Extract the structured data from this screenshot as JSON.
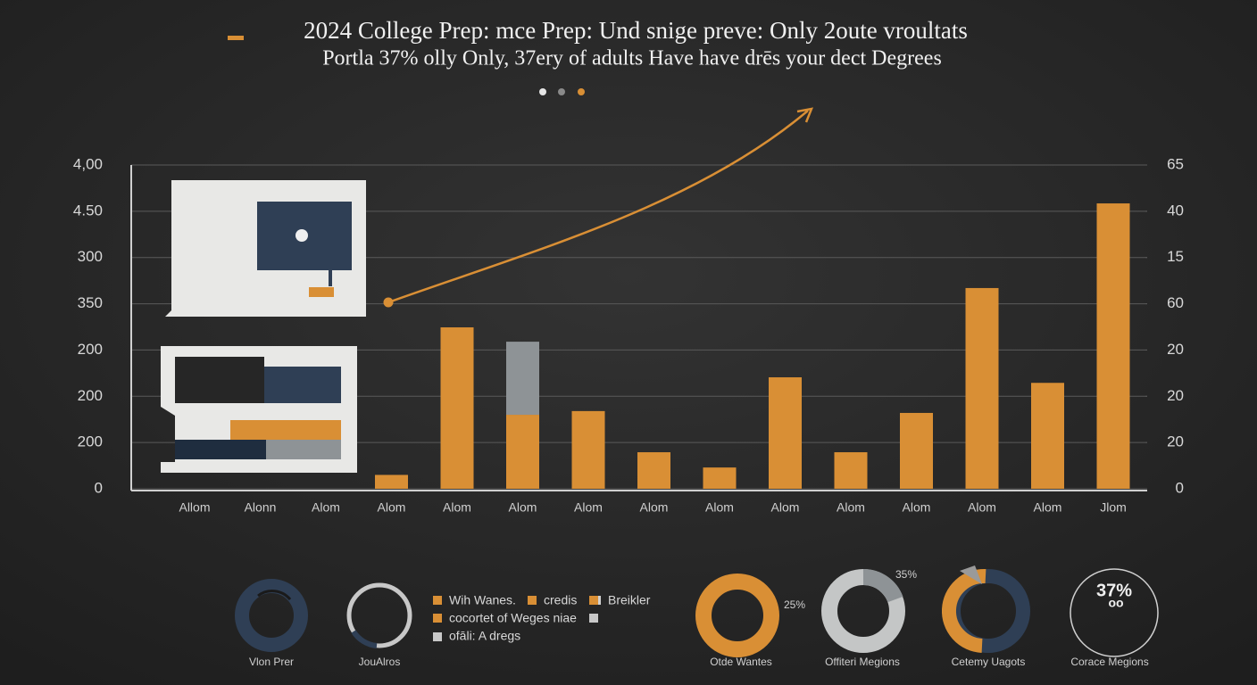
{
  "chart_data": {
    "type": "bar",
    "title": "2024 College Prep: mce Prep: Und snige preve: Only 2oute vroultats",
    "subtitle": "Portla 37% olly Only, 37ery of adults Have  have drēs your dect Degrees",
    "categories": [
      "Allom",
      "Alonn",
      "Alom",
      "Alom",
      "Alom",
      "Alom",
      "Alom",
      "Alom",
      "Alom",
      "Alom",
      "Alom",
      "Alom",
      "Alom",
      "Alom",
      "Jlom"
    ],
    "stacked": true,
    "series": [
      {
        "color": "#d98f35",
        "values": [
          null,
          null,
          null,
          0.3,
          3.49,
          1.6,
          1.68,
          0.79,
          0.46,
          2.41,
          0.79,
          1.64,
          4.34,
          2.29,
          6.17
        ]
      },
      {
        "color": "#8e9396",
        "values": [
          null,
          null,
          null,
          null,
          null,
          1.58,
          null,
          null,
          null,
          null,
          null,
          null,
          null,
          null,
          null
        ]
      }
    ],
    "ylim": [
      0,
      7
    ],
    "yticks": [
      0,
      {
        "value": 1,
        "label": "200"
      },
      {
        "value": 2,
        "label": "200"
      },
      {
        "value": 3,
        "label": "200"
      },
      {
        "value": 4,
        "label": "350"
      },
      {
        "value": 5,
        "label": "300"
      },
      {
        "value": 6,
        "label": "4.50"
      },
      {
        "value": 7,
        "label": "4,00"
      }
    ],
    "y2lim": [
      0,
      7
    ],
    "y2ticks": [
      0,
      {
        "value": 1,
        "label": "20"
      },
      {
        "value": 2,
        "label": "20"
      },
      {
        "value": 3,
        "label": "20"
      },
      {
        "value": 4,
        "label": "60"
      },
      {
        "value": 5,
        "label": "15"
      },
      {
        "value": 6,
        "label": "40"
      },
      {
        "value": 7,
        "label": "65"
      }
    ],
    "grid": true
  },
  "legend": [
    "Wih Wanes.",
    "credis",
    "Breikler",
    "cocortet of Weges niae",
    "ofāli: A dregs"
  ],
  "donuts": [
    {
      "label": "Vlon Prer"
    },
    {
      "label": "JouAlros"
    },
    {
      "label": "Otde Wantes",
      "percent": "25%"
    },
    {
      "label": "Offiteri Megions",
      "percent": "35%"
    },
    {
      "label": "Cetemy Uagots"
    },
    {
      "label": "Corace Megions",
      "percent": "37%",
      "sub": "oo"
    }
  ]
}
